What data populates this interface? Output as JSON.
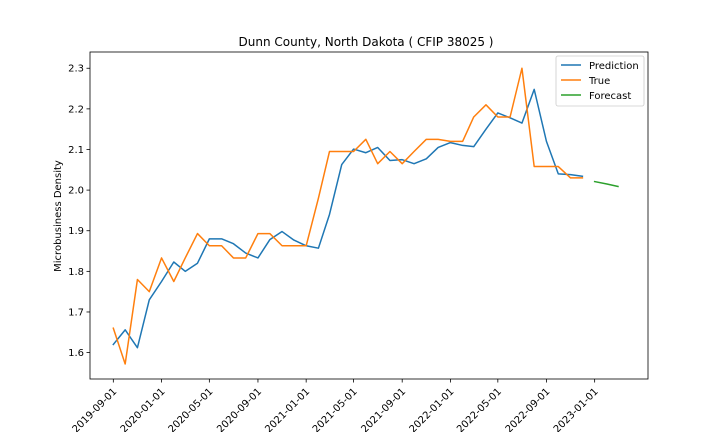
{
  "chart_data": {
    "type": "line",
    "title": "Dunn County, North Dakota ( CFIP 38025 )",
    "xlabel": "",
    "ylabel": "Microbusiness Density",
    "ylim": [
      1.535,
      2.34
    ],
    "xlim": [
      "2019-07-04",
      "2023-05-16"
    ],
    "yticks": [
      1.6,
      1.7,
      1.8,
      1.9,
      2.0,
      2.1,
      2.2,
      2.3
    ],
    "ytick_labels": [
      "1.6",
      "1.7",
      "1.8",
      "1.9",
      "2.0",
      "2.1",
      "2.2",
      "2.3"
    ],
    "xticks": [
      "2019-09-01",
      "2020-01-01",
      "2020-05-01",
      "2020-09-01",
      "2021-01-01",
      "2021-05-01",
      "2021-09-01",
      "2022-01-01",
      "2022-05-01",
      "2022-09-01",
      "2023-01-01"
    ],
    "xtick_labels": [
      "2019-09-01",
      "2020-01-01",
      "2020-05-01",
      "2020-09-01",
      "2021-01-01",
      "2021-05-01",
      "2021-09-01",
      "2022-01-01",
      "2022-05-01",
      "2022-09-01",
      "2023-01-01"
    ],
    "grid": false,
    "legend_position": "top-right",
    "series": [
      {
        "name": "Prediction",
        "color": "#1f77b4",
        "x": [
          "2019-09-01",
          "2019-10-01",
          "2019-11-01",
          "2019-12-01",
          "2020-01-01",
          "2020-02-01",
          "2020-03-01",
          "2020-04-01",
          "2020-05-01",
          "2020-06-01",
          "2020-07-01",
          "2020-08-01",
          "2020-09-01",
          "2020-10-01",
          "2020-11-01",
          "2020-12-01",
          "2021-01-01",
          "2021-02-01",
          "2021-03-01",
          "2021-04-01",
          "2021-05-01",
          "2021-06-01",
          "2021-07-01",
          "2021-08-01",
          "2021-09-01",
          "2021-10-01",
          "2021-11-01",
          "2021-12-01",
          "2022-01-01",
          "2022-02-01",
          "2022-03-01",
          "2022-04-01",
          "2022-05-01",
          "2022-06-01",
          "2022-07-01",
          "2022-08-01",
          "2022-09-01",
          "2022-10-01",
          "2022-11-01",
          "2022-12-01"
        ],
        "values": [
          1.62,
          1.656,
          1.612,
          1.73,
          1.775,
          1.823,
          1.8,
          1.82,
          1.88,
          1.88,
          1.868,
          1.845,
          1.833,
          1.878,
          1.898,
          1.877,
          1.863,
          1.857,
          1.94,
          2.063,
          2.101,
          2.092,
          2.105,
          2.073,
          2.075,
          2.065,
          2.077,
          2.105,
          2.117,
          2.11,
          2.107,
          2.15,
          2.19,
          2.178,
          2.165,
          2.248,
          2.12,
          2.04,
          2.038,
          2.034
        ]
      },
      {
        "name": "True",
        "color": "#ff7f0e",
        "x": [
          "2019-09-01",
          "2019-10-01",
          "2019-11-01",
          "2019-12-01",
          "2020-01-01",
          "2020-02-01",
          "2020-03-01",
          "2020-04-01",
          "2020-05-01",
          "2020-06-01",
          "2020-07-01",
          "2020-08-01",
          "2020-09-01",
          "2020-10-01",
          "2020-11-01",
          "2020-12-01",
          "2021-01-01",
          "2021-02-01",
          "2021-03-01",
          "2021-04-01",
          "2021-05-01",
          "2021-06-01",
          "2021-07-01",
          "2021-08-01",
          "2021-09-01",
          "2021-10-01",
          "2021-11-01",
          "2021-12-01",
          "2022-01-01",
          "2022-02-01",
          "2022-03-01",
          "2022-04-01",
          "2022-05-01",
          "2022-06-01",
          "2022-07-01",
          "2022-08-01",
          "2022-09-01",
          "2022-10-01",
          "2022-11-01",
          "2022-12-01"
        ],
        "values": [
          1.66,
          1.572,
          1.78,
          1.75,
          1.833,
          1.775,
          1.833,
          1.893,
          1.863,
          1.863,
          1.833,
          1.833,
          1.893,
          1.893,
          1.863,
          1.863,
          1.863,
          1.98,
          2.095,
          2.095,
          2.095,
          2.125,
          2.065,
          2.095,
          2.065,
          2.095,
          2.125,
          2.125,
          2.12,
          2.12,
          2.18,
          2.21,
          2.18,
          2.18,
          2.3,
          2.058,
          2.058,
          2.058,
          2.03,
          2.03
        ]
      },
      {
        "name": "Forecast",
        "color": "#2ca02c",
        "x": [
          "2023-01-01",
          "2023-02-01",
          "2023-03-01"
        ],
        "values": [
          2.021,
          2.015,
          2.009
        ]
      }
    ]
  }
}
